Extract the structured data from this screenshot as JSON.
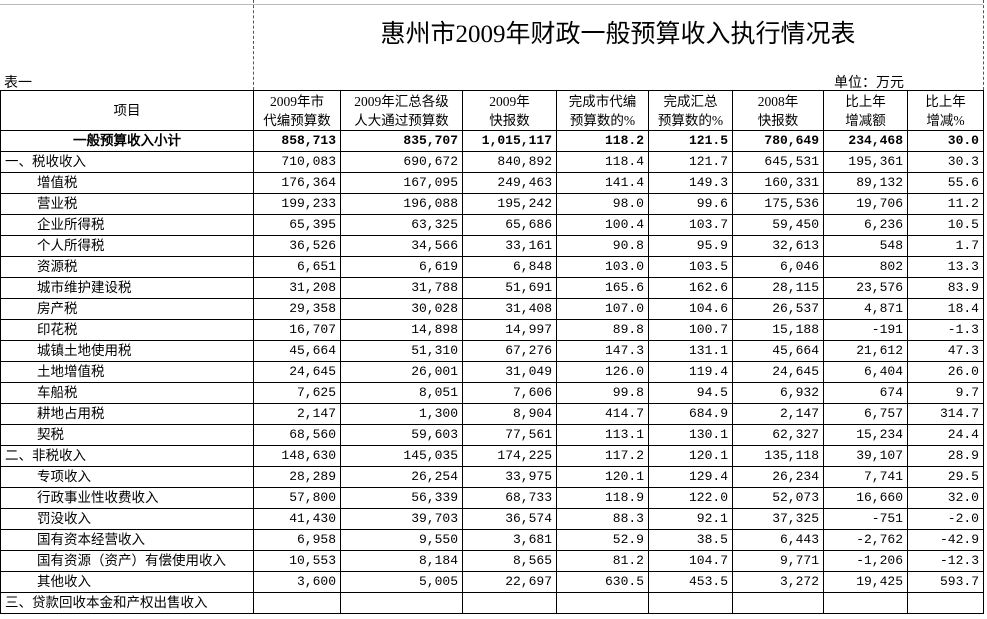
{
  "title": "惠州市2009年财政一般预算收入执行情况表",
  "table_label": "表一",
  "unit": "单位：万元",
  "table": {
    "header": [
      [
        "项目"
      ],
      [
        "2009年市",
        "代编预算数"
      ],
      [
        "2009年汇总各级",
        "人大通过预算数"
      ],
      [
        "2009年",
        "快报数"
      ],
      [
        "完成市代编",
        "预算数的%"
      ],
      [
        "完成汇总",
        "预算数的%"
      ],
      [
        "2008年",
        "快报数"
      ],
      [
        "比上年",
        "增减额"
      ],
      [
        "比上年",
        "增减%"
      ]
    ],
    "rows": [
      {
        "label": "一般预算收入小计",
        "values": [
          "858,713",
          "835,707",
          "1,015,117",
          "118.2",
          "121.5",
          "780,649",
          "234,468",
          "30.0"
        ]
      },
      {
        "label": "一、税收收入",
        "values": [
          "710,083",
          "690,672",
          "840,892",
          "118.4",
          "121.7",
          "645,531",
          "195,361",
          "30.3"
        ]
      },
      {
        "label": "增值税",
        "values": [
          "176,364",
          "167,095",
          "249,463",
          "141.4",
          "149.3",
          "160,331",
          "89,132",
          "55.6"
        ]
      },
      {
        "label": "营业税",
        "values": [
          "199,233",
          "196,088",
          "195,242",
          "98.0",
          "99.6",
          "175,536",
          "19,706",
          "11.2"
        ]
      },
      {
        "label": "企业所得税",
        "values": [
          "65,395",
          "63,325",
          "65,686",
          "100.4",
          "103.7",
          "59,450",
          "6,236",
          "10.5"
        ]
      },
      {
        "label": "个人所得税",
        "values": [
          "36,526",
          "34,566",
          "33,161",
          "90.8",
          "95.9",
          "32,613",
          "548",
          "1.7"
        ]
      },
      {
        "label": "资源税",
        "values": [
          "6,651",
          "6,619",
          "6,848",
          "103.0",
          "103.5",
          "6,046",
          "802",
          "13.3"
        ]
      },
      {
        "label": "城市维护建设税",
        "values": [
          "31,208",
          "31,788",
          "51,691",
          "165.6",
          "162.6",
          "28,115",
          "23,576",
          "83.9"
        ]
      },
      {
        "label": "房产税",
        "values": [
          "29,358",
          "30,028",
          "31,408",
          "107.0",
          "104.6",
          "26,537",
          "4,871",
          "18.4"
        ]
      },
      {
        "label": "印花税",
        "values": [
          "16,707",
          "14,898",
          "14,997",
          "89.8",
          "100.7",
          "15,188",
          "-191",
          "-1.3"
        ]
      },
      {
        "label": "城镇土地使用税",
        "values": [
          "45,664",
          "51,310",
          "67,276",
          "147.3",
          "131.1",
          "45,664",
          "21,612",
          "47.3"
        ]
      },
      {
        "label": "土地增值税",
        "values": [
          "24,645",
          "26,001",
          "31,049",
          "126.0",
          "119.4",
          "24,645",
          "6,404",
          "26.0"
        ]
      },
      {
        "label": "车船税",
        "values": [
          "7,625",
          "8,051",
          "7,606",
          "99.8",
          "94.5",
          "6,932",
          "674",
          "9.7"
        ]
      },
      {
        "label": "耕地占用税",
        "values": [
          "2,147",
          "1,300",
          "8,904",
          "414.7",
          "684.9",
          "2,147",
          "6,757",
          "314.7"
        ]
      },
      {
        "label": "契税",
        "values": [
          "68,560",
          "59,603",
          "77,561",
          "113.1",
          "130.1",
          "62,327",
          "15,234",
          "24.4"
        ]
      },
      {
        "label": "二、非税收入",
        "values": [
          "148,630",
          "145,035",
          "174,225",
          "117.2",
          "120.1",
          "135,118",
          "39,107",
          "28.9"
        ]
      },
      {
        "label": "专项收入",
        "values": [
          "28,289",
          "26,254",
          "33,975",
          "120.1",
          "129.4",
          "26,234",
          "7,741",
          "29.5"
        ]
      },
      {
        "label": "行政事业性收费收入",
        "values": [
          "57,800",
          "56,339",
          "68,733",
          "118.9",
          "122.0",
          "52,073",
          "16,660",
          "32.0"
        ]
      },
      {
        "label": "罚没收入",
        "values": [
          "41,430",
          "39,703",
          "36,574",
          "88.3",
          "92.1",
          "37,325",
          "-751",
          "-2.0"
        ]
      },
      {
        "label": "国有资本经营收入",
        "values": [
          "6,958",
          "9,550",
          "3,681",
          "52.9",
          "38.5",
          "6,443",
          "-2,762",
          "-42.9"
        ]
      },
      {
        "label": "国有资源（资产）有偿使用收入",
        "values": [
          "10,553",
          "8,184",
          "8,565",
          "81.2",
          "104.7",
          "9,771",
          "-1,206",
          "-12.3"
        ]
      },
      {
        "label": "其他收入",
        "values": [
          "3,600",
          "5,005",
          "22,697",
          "630.5",
          "453.5",
          "3,272",
          "19,425",
          "593.7"
        ]
      },
      {
        "label": "三、贷款回收本金和产权出售收入"
      }
    ]
  }
}
